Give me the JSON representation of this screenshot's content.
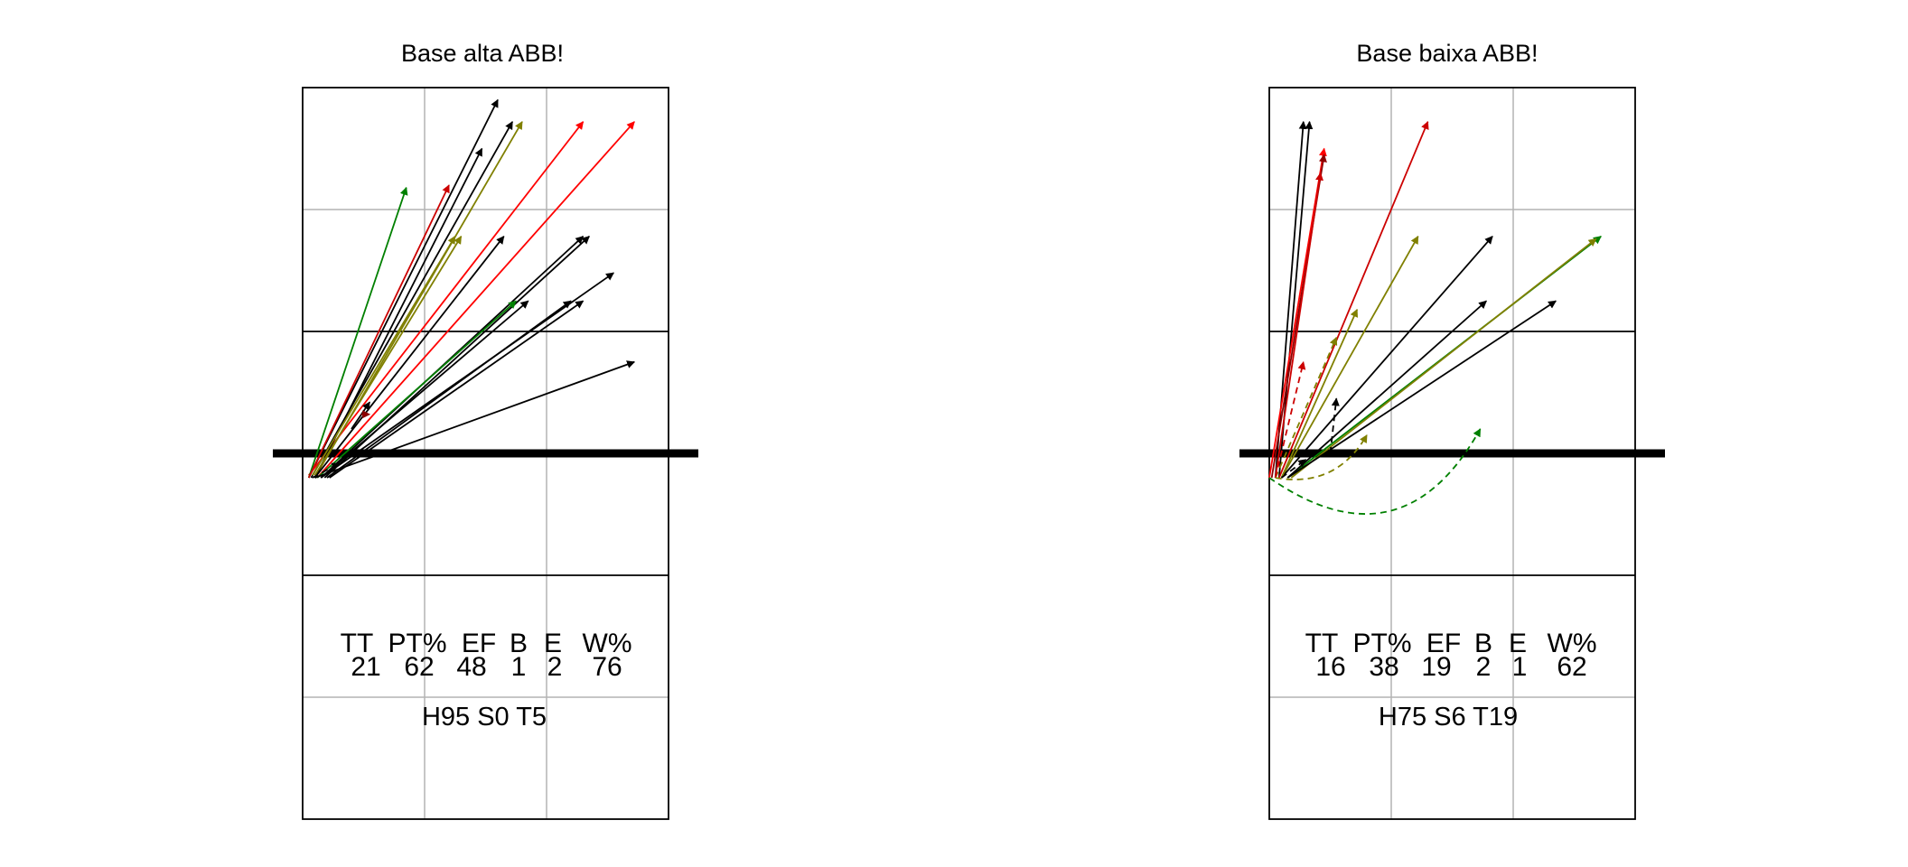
{
  "chart_data": [
    {
      "type": "court-arrow-plot",
      "title": "Base alta ABB!",
      "xlim": [
        0,
        3
      ],
      "ylim": [
        0,
        6
      ],
      "net_y": 3,
      "stats_headers": [
        "TT",
        "PT%",
        "EF",
        "B",
        "E",
        "W%"
      ],
      "stats_values": [
        "21",
        "62",
        "48",
        "1",
        "2",
        "76"
      ],
      "footer": "H95 S0 T5",
      "arrows": [
        {
          "x0": 0.05,
          "y0": 2.8,
          "x1": 1.6,
          "y1": 5.9,
          "color": "#000000",
          "dashed": false,
          "curve": 0
        },
        {
          "x0": 0.07,
          "y0": 2.8,
          "x1": 1.72,
          "y1": 5.72,
          "color": "#000000",
          "dashed": false,
          "curve": 0
        },
        {
          "x0": 0.1,
          "y0": 2.8,
          "x1": 1.8,
          "y1": 5.72,
          "color": "#808000",
          "dashed": false,
          "curve": 0
        },
        {
          "x0": 0.05,
          "y0": 2.82,
          "x1": 2.3,
          "y1": 5.72,
          "color": "#ff0000",
          "dashed": false,
          "curve": 0
        },
        {
          "x0": 0.12,
          "y0": 2.8,
          "x1": 2.72,
          "y1": 5.72,
          "color": "#ff0000",
          "dashed": false,
          "curve": 0
        },
        {
          "x0": 0.05,
          "y0": 2.8,
          "x1": 0.85,
          "y1": 5.18,
          "color": "#008000",
          "dashed": false,
          "curve": 0
        },
        {
          "x0": 0.05,
          "y0": 2.8,
          "x1": 1.2,
          "y1": 5.2,
          "color": "#cc0000",
          "dashed": false,
          "curve": 0
        },
        {
          "x0": 0.1,
          "y0": 2.8,
          "x1": 1.47,
          "y1": 5.5,
          "color": "#000000",
          "dashed": false,
          "curve": 0
        },
        {
          "x0": 0.1,
          "y0": 2.82,
          "x1": 1.3,
          "y1": 4.78,
          "color": "#808000",
          "dashed": false,
          "curve": 0
        },
        {
          "x0": 0.08,
          "y0": 2.82,
          "x1": 1.25,
          "y1": 4.78,
          "color": "#808000",
          "dashed": false,
          "curve": 0
        },
        {
          "x0": 0.1,
          "y0": 2.8,
          "x1": 1.65,
          "y1": 4.78,
          "color": "#000000",
          "dashed": false,
          "curve": 0
        },
        {
          "x0": 0.15,
          "y0": 2.8,
          "x1": 2.3,
          "y1": 4.78,
          "color": "#000000",
          "dashed": false,
          "curve": 0
        },
        {
          "x0": 0.18,
          "y0": 2.8,
          "x1": 2.35,
          "y1": 4.78,
          "color": "#000000",
          "dashed": false,
          "curve": 0
        },
        {
          "x0": 0.15,
          "y0": 2.8,
          "x1": 2.55,
          "y1": 4.48,
          "color": "#000000",
          "dashed": false,
          "curve": 0
        },
        {
          "x0": 0.15,
          "y0": 2.8,
          "x1": 1.85,
          "y1": 4.25,
          "color": "#000000",
          "dashed": false,
          "curve": 0
        },
        {
          "x0": 0.12,
          "y0": 2.8,
          "x1": 1.75,
          "y1": 4.25,
          "color": "#008000",
          "dashed": false,
          "curve": 0
        },
        {
          "x0": 0.2,
          "y0": 2.8,
          "x1": 2.2,
          "y1": 4.25,
          "color": "#000000",
          "dashed": false,
          "curve": 0
        },
        {
          "x0": 0.22,
          "y0": 2.8,
          "x1": 2.3,
          "y1": 4.25,
          "color": "#000000",
          "dashed": false,
          "curve": 0
        },
        {
          "x0": 0.1,
          "y0": 2.8,
          "x1": 2.72,
          "y1": 3.75,
          "color": "#000000",
          "dashed": false,
          "curve": 0
        },
        {
          "x0": 0.4,
          "y0": 3.2,
          "x1": 0.55,
          "y1": 3.42,
          "color": "#000000",
          "dashed": false,
          "curve": 0
        },
        {
          "x0": 0.48,
          "y0": 3.32,
          "x1": 0.55,
          "y1": 3.32,
          "color": "#8b0000",
          "dashed": true,
          "curve": 0
        },
        {
          "x0": 0.08,
          "y0": 2.8,
          "x1": 0.3,
          "y1": 2.92,
          "color": "#000000",
          "dashed": true,
          "curve": 0
        }
      ]
    },
    {
      "type": "court-arrow-plot",
      "title": "Base baixa ABB!",
      "xlim": [
        0,
        3
      ],
      "ylim": [
        0,
        6
      ],
      "net_y": 3,
      "stats_headers": [
        "TT",
        "PT%",
        "EF",
        "B",
        "E",
        "W%"
      ],
      "stats_values": [
        "16",
        "38",
        "19",
        "2",
        "1",
        "62"
      ],
      "footer": "H75 S6 T19",
      "arrows": [
        {
          "x0": 0.05,
          "y0": 2.8,
          "x1": 0.28,
          "y1": 5.72,
          "color": "#000000",
          "dashed": false,
          "curve": 0
        },
        {
          "x0": 0.08,
          "y0": 2.8,
          "x1": 0.33,
          "y1": 5.72,
          "color": "#000000",
          "dashed": false,
          "curve": 0
        },
        {
          "x0": 0.0,
          "y0": 2.8,
          "x1": 0.45,
          "y1": 5.5,
          "color": "#ff0000",
          "dashed": false,
          "curve": 0
        },
        {
          "x0": 0.02,
          "y0": 2.8,
          "x1": 0.45,
          "y1": 5.45,
          "color": "#8b0000",
          "dashed": false,
          "curve": 0
        },
        {
          "x0": 0.05,
          "y0": 2.8,
          "x1": 0.42,
          "y1": 5.3,
          "color": "#cc0000",
          "dashed": false,
          "curve": 0
        },
        {
          "x0": 0.08,
          "y0": 2.8,
          "x1": 1.3,
          "y1": 5.72,
          "color": "#cc0000",
          "dashed": false,
          "curve": 0
        },
        {
          "x0": 0.1,
          "y0": 2.8,
          "x1": 1.22,
          "y1": 4.78,
          "color": "#808000",
          "dashed": false,
          "curve": 0
        },
        {
          "x0": 0.1,
          "y0": 2.8,
          "x1": 1.83,
          "y1": 4.78,
          "color": "#000000",
          "dashed": false,
          "curve": 0
        },
        {
          "x0": 0.15,
          "y0": 2.8,
          "x1": 2.72,
          "y1": 4.78,
          "color": "#008000",
          "dashed": false,
          "curve": 0
        },
        {
          "x0": 0.18,
          "y0": 2.8,
          "x1": 2.68,
          "y1": 4.76,
          "color": "#808000",
          "dashed": false,
          "curve": 0
        },
        {
          "x0": 0.15,
          "y0": 2.8,
          "x1": 1.78,
          "y1": 4.25,
          "color": "#000000",
          "dashed": false,
          "curve": 0
        },
        {
          "x0": 0.15,
          "y0": 2.8,
          "x1": 2.35,
          "y1": 4.25,
          "color": "#000000",
          "dashed": false,
          "curve": 0
        },
        {
          "x0": 0.1,
          "y0": 2.8,
          "x1": 0.72,
          "y1": 4.18,
          "color": "#808000",
          "dashed": false,
          "curve": 0
        },
        {
          "x0": 0.05,
          "y0": 2.8,
          "x1": 0.55,
          "y1": 3.95,
          "color": "#808000",
          "dashed": true,
          "curve": 0
        },
        {
          "x0": 0.05,
          "y0": 2.8,
          "x1": 0.28,
          "y1": 3.75,
          "color": "#cc0000",
          "dashed": true,
          "curve": 0
        },
        {
          "x0": 0.5,
          "y0": 3.0,
          "x1": 0.55,
          "y1": 3.45,
          "color": "#000000",
          "dashed": true,
          "curve": 0
        },
        {
          "x0": 0.1,
          "y0": 2.8,
          "x1": 0.3,
          "y1": 2.95,
          "color": "#000000",
          "dashed": true,
          "curve": 0
        },
        {
          "x0": 0.05,
          "y0": 2.8,
          "x1": 0.8,
          "y1": 3.15,
          "color": "#808000",
          "dashed": true,
          "curve": -0.35
        },
        {
          "x0": 0.0,
          "y0": 2.8,
          "x1": 1.73,
          "y1": 3.2,
          "color": "#008000",
          "dashed": true,
          "curve": -0.55
        }
      ]
    }
  ]
}
